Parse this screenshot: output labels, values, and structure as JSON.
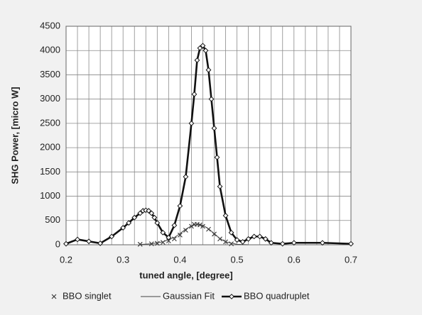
{
  "chart_data": {
    "type": "line",
    "xlabel": "tuned angle, [degree]",
    "ylabel": "SHG Power, [micro W]",
    "xlim": [
      0.2,
      0.7
    ],
    "ylim": [
      0,
      4500
    ],
    "xticks": [
      0.2,
      0.3,
      0.4,
      0.5,
      0.6,
      0.7
    ],
    "xminorticks": [
      0.22,
      0.24,
      0.26,
      0.28,
      0.32,
      0.34,
      0.36,
      0.38,
      0.42,
      0.44,
      0.46,
      0.48,
      0.52,
      0.54,
      0.56,
      0.58,
      0.62,
      0.64,
      0.66,
      0.68
    ],
    "yticks": [
      0,
      500,
      1000,
      1500,
      2000,
      2500,
      3000,
      3500,
      4000,
      4500
    ],
    "grid": true,
    "legend": "bottom",
    "series": [
      {
        "name": "BBO singlet",
        "color": "#333333",
        "marker": "x",
        "line": false,
        "x": [
          0.33,
          0.35,
          0.36,
          0.37,
          0.38,
          0.39,
          0.4,
          0.41,
          0.42,
          0.425,
          0.43,
          0.435,
          0.44,
          0.45,
          0.46,
          0.47,
          0.48,
          0.49
        ],
        "values": [
          10,
          20,
          30,
          50,
          80,
          120,
          200,
          300,
          380,
          420,
          420,
          410,
          380,
          320,
          220,
          120,
          60,
          20
        ]
      },
      {
        "name": "Gaussian Fit",
        "color": "#444444",
        "marker": "none",
        "line": true,
        "x": [
          0.33,
          0.35,
          0.37,
          0.39,
          0.4,
          0.41,
          0.42,
          0.43,
          0.44,
          0.45,
          0.46,
          0.47,
          0.48,
          0.5,
          0.52
        ],
        "values": [
          5,
          20,
          60,
          150,
          230,
          320,
          390,
          420,
          400,
          330,
          230,
          130,
          60,
          10,
          0
        ]
      },
      {
        "name": "BBO quadruplet",
        "color": "#111111",
        "marker": "diamond",
        "line": true,
        "x": [
          0.2,
          0.22,
          0.24,
          0.26,
          0.28,
          0.3,
          0.31,
          0.32,
          0.33,
          0.335,
          0.34,
          0.345,
          0.35,
          0.355,
          0.36,
          0.37,
          0.38,
          0.39,
          0.4,
          0.41,
          0.42,
          0.425,
          0.43,
          0.435,
          0.44,
          0.445,
          0.45,
          0.455,
          0.46,
          0.465,
          0.47,
          0.48,
          0.49,
          0.5,
          0.51,
          0.52,
          0.53,
          0.54,
          0.55,
          0.56,
          0.58,
          0.6,
          0.65,
          0.7
        ],
        "values": [
          20,
          110,
          70,
          30,
          170,
          350,
          450,
          560,
          650,
          700,
          710,
          700,
          650,
          560,
          450,
          250,
          150,
          400,
          800,
          1400,
          2500,
          3100,
          3800,
          4050,
          4100,
          4000,
          3600,
          3000,
          2400,
          1800,
          1200,
          600,
          250,
          100,
          60,
          120,
          170,
          170,
          120,
          40,
          20,
          40,
          40,
          20
        ]
      }
    ]
  }
}
